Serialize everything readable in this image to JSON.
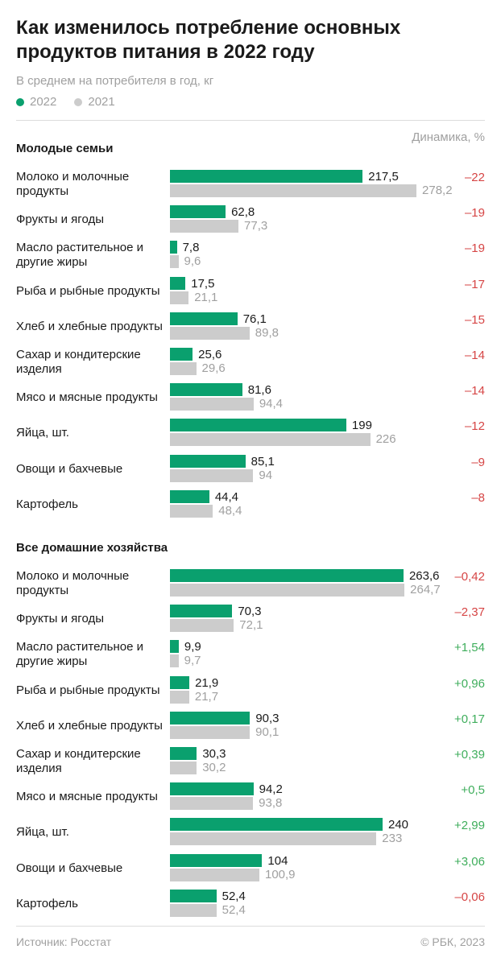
{
  "title": "Как изменилось потребление основных продуктов питания в 2022 году",
  "subtitle": "В среднем на потребителя в год, кг",
  "legend": [
    {
      "label": "2022",
      "color": "#0aa06e"
    },
    {
      "label": "2021",
      "color": "#cccccc"
    }
  ],
  "dynamics_header": "Динамика, %",
  "source": "Источник: Росстат",
  "copyright": "© РБК, 2023",
  "colors": {
    "y2022": "#0aa06e",
    "y2021": "#cccccc",
    "negative": "#d64545",
    "positive": "#3fae5c"
  },
  "chart_data": {
    "type": "bar",
    "orientation": "horizontal",
    "sections": [
      {
        "title": "Молодые семьи",
        "rows": [
          {
            "label": "Молоко и молочные продукты",
            "v2022": 217.5,
            "v2021": 278.2,
            "v2022_text": "217,5",
            "v2021_text": "278,2",
            "dynamics": "–22",
            "sign": "neg"
          },
          {
            "label": "Фрукты и ягоды",
            "v2022": 62.8,
            "v2021": 77.3,
            "v2022_text": "62,8",
            "v2021_text": "77,3",
            "dynamics": "–19",
            "sign": "neg"
          },
          {
            "label": "Масло растительное и другие жиры",
            "v2022": 7.8,
            "v2021": 9.6,
            "v2022_text": "7,8",
            "v2021_text": "9,6",
            "dynamics": "–19",
            "sign": "neg"
          },
          {
            "label": "Рыба и рыбные продукты",
            "v2022": 17.5,
            "v2021": 21.1,
            "v2022_text": "17,5",
            "v2021_text": "21,1",
            "dynamics": "–17",
            "sign": "neg"
          },
          {
            "label": "Хлеб и хлебные продукты",
            "v2022": 76.1,
            "v2021": 89.8,
            "v2022_text": "76,1",
            "v2021_text": "89,8",
            "dynamics": "–15",
            "sign": "neg"
          },
          {
            "label": "Сахар и кондитерские изделия",
            "v2022": 25.6,
            "v2021": 29.6,
            "v2022_text": "25,6",
            "v2021_text": "29,6",
            "dynamics": "–14",
            "sign": "neg"
          },
          {
            "label": "Мясо и мясные продукты",
            "v2022": 81.6,
            "v2021": 94.4,
            "v2022_text": "81,6",
            "v2021_text": "94,4",
            "dynamics": "–14",
            "sign": "neg"
          },
          {
            "label": "Яйца, шт.",
            "v2022": 199,
            "v2021": 226,
            "v2022_text": "199",
            "v2021_text": "226",
            "dynamics": "–12",
            "sign": "neg"
          },
          {
            "label": "Овощи и бахчевые",
            "v2022": 85.1,
            "v2021": 94,
            "v2022_text": "85,1",
            "v2021_text": "94",
            "dynamics": "–9",
            "sign": "neg"
          },
          {
            "label": "Картофель",
            "v2022": 44.4,
            "v2021": 48.4,
            "v2022_text": "44,4",
            "v2021_text": "48,4",
            "dynamics": "–8",
            "sign": "neg"
          }
        ]
      },
      {
        "title": "Все домашние хозяйства",
        "rows": [
          {
            "label": "Молоко и молочные продукты",
            "v2022": 263.6,
            "v2021": 264.7,
            "v2022_text": "263,6",
            "v2021_text": "264,7",
            "dynamics": "–0,42",
            "sign": "neg"
          },
          {
            "label": "Фрукты и ягоды",
            "v2022": 70.3,
            "v2021": 72.1,
            "v2022_text": "70,3",
            "v2021_text": "72,1",
            "dynamics": "–2,37",
            "sign": "neg"
          },
          {
            "label": "Масло растительное и другие жиры",
            "v2022": 9.9,
            "v2021": 9.7,
            "v2022_text": "9,9",
            "v2021_text": "9,7",
            "dynamics": "+1,54",
            "sign": "pos"
          },
          {
            "label": "Рыба и рыбные продукты",
            "v2022": 21.9,
            "v2021": 21.7,
            "v2022_text": "21,9",
            "v2021_text": "21,7",
            "dynamics": "+0,96",
            "sign": "pos"
          },
          {
            "label": "Хлеб и хлебные продукты",
            "v2022": 90.3,
            "v2021": 90.1,
            "v2022_text": "90,3",
            "v2021_text": "90,1",
            "dynamics": "+0,17",
            "sign": "pos"
          },
          {
            "label": "Сахар и кондитерские изделия",
            "v2022": 30.3,
            "v2021": 30.2,
            "v2022_text": "30,3",
            "v2021_text": "30,2",
            "dynamics": "+0,39",
            "sign": "pos"
          },
          {
            "label": "Мясо и мясные продукты",
            "v2022": 94.2,
            "v2021": 93.8,
            "v2022_text": "94,2",
            "v2021_text": "93,8",
            "dynamics": "+0,5",
            "sign": "pos"
          },
          {
            "label": "Яйца, шт.",
            "v2022": 240,
            "v2021": 233,
            "v2022_text": "240",
            "v2021_text": "233",
            "dynamics": "+2,99",
            "sign": "pos"
          },
          {
            "label": "Овощи и бахчевые",
            "v2022": 104,
            "v2021": 100.9,
            "v2022_text": "104",
            "v2021_text": "100,9",
            "dynamics": "+3,06",
            "sign": "pos"
          },
          {
            "label": "Картофель",
            "v2022": 52.4,
            "v2021": 52.4,
            "v2022_text": "52,4",
            "v2021_text": "52,4",
            "dynamics": "–0,06",
            "sign": "neg"
          }
        ]
      }
    ]
  }
}
